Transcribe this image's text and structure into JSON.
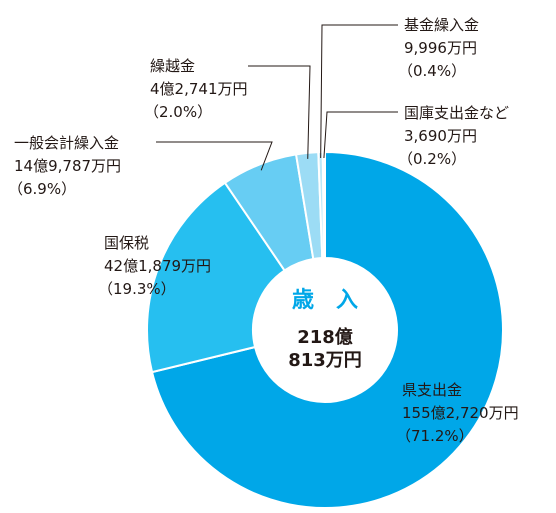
{
  "chart_data": {
    "type": "pie",
    "donut": true,
    "center_title": "歳　入",
    "center_total": [
      "218億",
      "813万円"
    ],
    "colors": [
      "#00a7e8",
      "#26bff0",
      "#67cdf3",
      "#9cdcf5",
      "#bde8f8",
      "#d8f1fa"
    ],
    "center_title_color": "#00a7e8",
    "slices": [
      {
        "name": "県支出金",
        "amount": "155億2,720万円",
        "percent_label": "（71.2%）",
        "value": 71.2
      },
      {
        "name": "国保税",
        "amount": "42億1,879万円",
        "percent_label": "（19.3%）",
        "value": 19.3
      },
      {
        "name": "一般会計繰入金",
        "amount": "14億9,787万円",
        "percent_label": "（6.9%）",
        "value": 6.9
      },
      {
        "name": "繰越金",
        "amount": "4億2,741万円",
        "percent_label": "（2.0%）",
        "value": 2.0
      },
      {
        "name": "基金繰入金",
        "amount": "9,996万円",
        "percent_label": "（0.4%）",
        "value": 0.4
      },
      {
        "name": "国庫支出金など",
        "amount": "3,690万円",
        "percent_label": "（0.2%）",
        "value": 0.2
      }
    ]
  }
}
